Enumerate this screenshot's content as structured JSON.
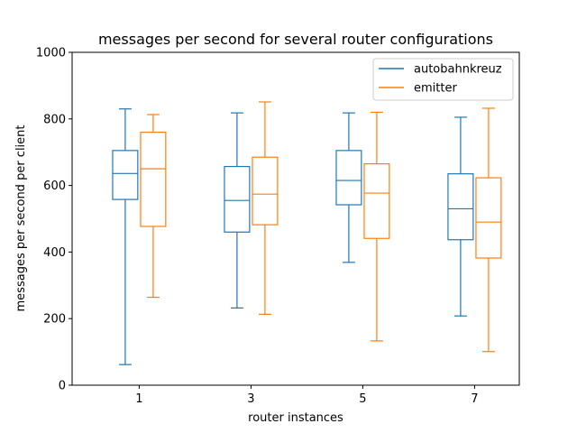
{
  "chart_data": {
    "type": "box",
    "title": "messages per second for several router configurations",
    "xlabel": "router instances",
    "ylabel": "messages per second per client",
    "categories": [
      "1",
      "3",
      "5",
      "7"
    ],
    "ylim": [
      0,
      1000
    ],
    "yticks": [
      0,
      200,
      400,
      600,
      800,
      1000
    ],
    "grid": false,
    "legend_position": "top-right",
    "series": [
      {
        "name": "autobahnkreuz",
        "color": "#1f77b4",
        "boxes": [
          {
            "whislo": 62,
            "q1": 558,
            "med": 636,
            "q3": 705,
            "whishi": 830
          },
          {
            "whislo": 232,
            "q1": 460,
            "med": 555,
            "q3": 657,
            "whishi": 818
          },
          {
            "whislo": 369,
            "q1": 542,
            "med": 615,
            "q3": 705,
            "whishi": 818
          },
          {
            "whislo": 208,
            "q1": 437,
            "med": 530,
            "q3": 635,
            "whishi": 805
          }
        ]
      },
      {
        "name": "emitter",
        "color": "#ff7f0e",
        "boxes": [
          {
            "whislo": 264,
            "q1": 477,
            "med": 650,
            "q3": 760,
            "whishi": 813
          },
          {
            "whislo": 213,
            "q1": 482,
            "med": 574,
            "q3": 685,
            "whishi": 851
          },
          {
            "whislo": 133,
            "q1": 441,
            "med": 577,
            "q3": 665,
            "whishi": 820
          },
          {
            "whislo": 101,
            "q1": 382,
            "med": 490,
            "q3": 623,
            "whishi": 832
          }
        ]
      }
    ]
  }
}
